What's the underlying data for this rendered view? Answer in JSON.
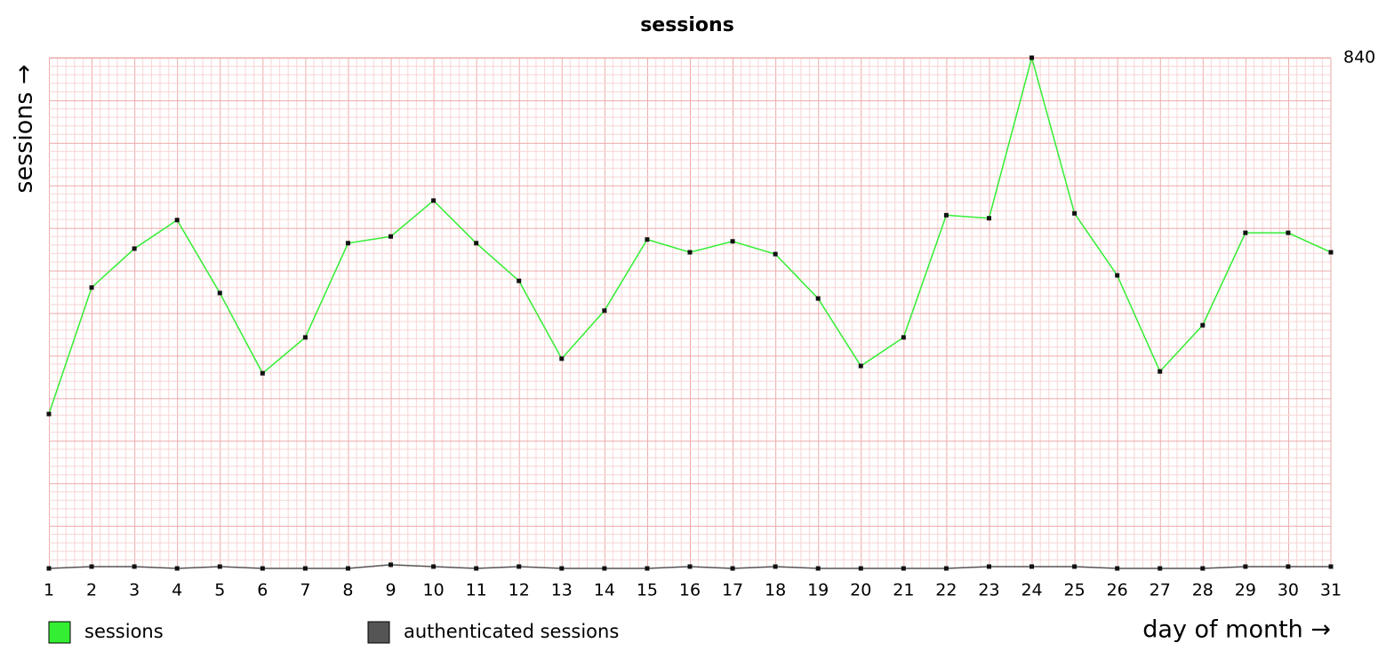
{
  "chart_data": {
    "type": "line",
    "title": "sessions",
    "y_label": "sessions →",
    "x_label": "day of month →",
    "categories": [
      "1",
      "2",
      "3",
      "4",
      "5",
      "6",
      "7",
      "8",
      "9",
      "10",
      "11",
      "12",
      "13",
      "14",
      "15",
      "16",
      "17",
      "18",
      "19",
      "20",
      "21",
      "22",
      "23",
      "24",
      "25",
      "26",
      "27",
      "28",
      "29",
      "30",
      "31"
    ],
    "series": [
      {
        "name": "sessions",
        "color": "#33ee33",
        "values": [
          254,
          462,
          526,
          573,
          453,
          321,
          380,
          535,
          546,
          605,
          535,
          473,
          345,
          424,
          541,
          520,
          538,
          517,
          444,
          333,
          380,
          581,
          576,
          840,
          584,
          482,
          324,
          400,
          552,
          552,
          520
        ]
      },
      {
        "name": "authenticated sessions",
        "color": "#555555",
        "values": [
          0,
          3,
          3,
          0,
          3,
          0,
          0,
          0,
          6,
          3,
          0,
          3,
          0,
          0,
          0,
          3,
          0,
          3,
          0,
          0,
          0,
          0,
          3,
          3,
          3,
          0,
          0,
          0,
          3,
          3,
          3
        ]
      }
    ],
    "ylim": [
      0,
      840
    ],
    "yticks": [
      840
    ],
    "grid": true
  }
}
